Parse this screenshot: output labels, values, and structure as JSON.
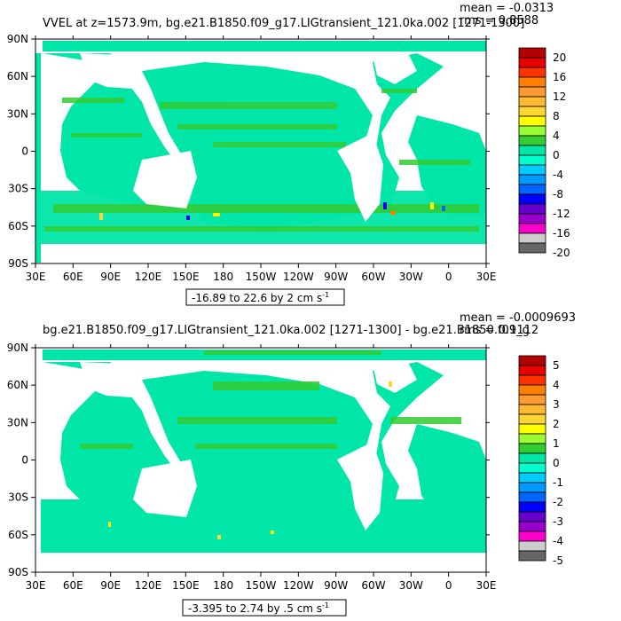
{
  "chart_data": [
    {
      "type": "heatmap",
      "title": "VVEL at z=1573.9m, bg.e21.B1850.f09_g17.LIGtransient_121.0ka.002 [1271-1300]",
      "stats": {
        "mean": "mean = -0.0313",
        "rms": "rms = 0.8588"
      },
      "x_ticks": [
        "30E",
        "60E",
        "90E",
        "120E",
        "150E",
        "180",
        "150W",
        "120W",
        "90W",
        "60W",
        "30W",
        "0",
        "30E"
      ],
      "y_ticks": [
        "90N",
        "60N",
        "30N",
        "0",
        "30S",
        "60S",
        "90S"
      ],
      "xlim": [
        30,
        390
      ],
      "ylim": [
        -90,
        90
      ],
      "contour_info": "-16.89 to 22.6 by 2 cm s",
      "contour_unit_exp": "-1",
      "colorbar": {
        "labels": [
          "20",
          "16",
          "12",
          "8",
          "4",
          "0",
          "-4",
          "-8",
          "-12",
          "-16",
          "-20"
        ],
        "colors": [
          "#b30000",
          "#e60000",
          "#ff3300",
          "#ff8000",
          "#ff9933",
          "#ffb833",
          "#ffd633",
          "#ffff00",
          "#99ff33",
          "#33cc33",
          "#00e6a8",
          "#00ffcc",
          "#00ccff",
          "#0099ff",
          "#0066ff",
          "#0000ff",
          "#6600cc",
          "#9900cc",
          "#ff00cc",
          "#cccccc",
          "#666666"
        ]
      }
    },
    {
      "type": "heatmap",
      "title": "bg.e21.B1850.f09_g17.LIGtransient_121.0ka.002 [1271-1300] - bg.e21.B1850.f09_g",
      "stats": {
        "mean": "mean = -0.0009693",
        "rms": "rms = 0.1112"
      },
      "x_ticks": [
        "30E",
        "60E",
        "90E",
        "120E",
        "150E",
        "180",
        "150W",
        "120W",
        "90W",
        "60W",
        "30W",
        "0",
        "30E"
      ],
      "y_ticks": [
        "90N",
        "60N",
        "30N",
        "0",
        "30S",
        "60S",
        "90S"
      ],
      "xlim": [
        30,
        390
      ],
      "ylim": [
        -90,
        90
      ],
      "contour_info": "-3.395 to 2.74 by .5 cm s",
      "contour_unit_exp": "-1",
      "colorbar": {
        "labels": [
          "5",
          "4",
          "3",
          "2",
          "1",
          "0",
          "-1",
          "-2",
          "-3",
          "-4",
          "-5"
        ],
        "colors": [
          "#b30000",
          "#e60000",
          "#ff3300",
          "#ff8000",
          "#ff9933",
          "#ffb833",
          "#ffd633",
          "#ffff00",
          "#99ff33",
          "#33cc33",
          "#00e6a8",
          "#00ffcc",
          "#00ccff",
          "#0099ff",
          "#0066ff",
          "#0000ff",
          "#6600cc",
          "#9900cc",
          "#ff00cc",
          "#cccccc",
          "#666666"
        ]
      }
    }
  ]
}
